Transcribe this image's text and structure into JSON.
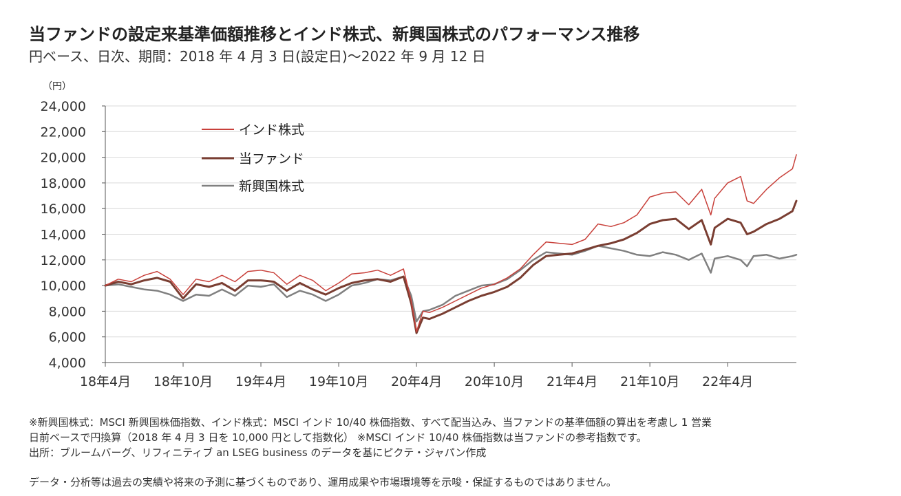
{
  "header": {
    "title": "当ファンドの設定来基準価額推移とインド株式、新興国株式のパフォーマンス推移",
    "subtitle": "円ベース、日次、期間：2018 年 4 月 3 日(設定日)～2022 年 9 月 12 日"
  },
  "chart_data": {
    "type": "line",
    "ylabel": "（円）",
    "ylim": [
      4000,
      24000
    ],
    "yticks": [
      "4,000",
      "6,000",
      "8,000",
      "10,000",
      "12,000",
      "14,000",
      "16,000",
      "18,000",
      "20,000",
      "22,000",
      "24,000"
    ],
    "ytick_values": [
      4000,
      6000,
      8000,
      10000,
      12000,
      14000,
      16000,
      18000,
      20000,
      22000,
      24000
    ],
    "xlim": [
      0,
      53.3
    ],
    "xticks": [
      "18年4月",
      "18年10月",
      "19年4月",
      "19年10月",
      "20年4月",
      "20年10月",
      "21年4月",
      "21年10月",
      "22年4月"
    ],
    "xtick_values": [
      0,
      6,
      12,
      18,
      24,
      30,
      36,
      42,
      48
    ],
    "grid": "horizontal",
    "legend_position": "top-left",
    "series": [
      {
        "name": "インド株式",
        "color": "#c8403a",
        "width": 1.5,
        "x": [
          0,
          1,
          2,
          3,
          4,
          5,
          6,
          7,
          8,
          9,
          10,
          11,
          12,
          13,
          14,
          15,
          16,
          17,
          18,
          19,
          20,
          21,
          22,
          23,
          23.6,
          24,
          24.5,
          25,
          26,
          27,
          28,
          29,
          30,
          31,
          32,
          33,
          34,
          35,
          36,
          37,
          38,
          39,
          40,
          41,
          42,
          43,
          44,
          45,
          46,
          46.7,
          47,
          48,
          49,
          49.5,
          50,
          51,
          52,
          53,
          53.3
        ],
        "y": [
          10000,
          10500,
          10300,
          10800,
          11100,
          10500,
          9300,
          10500,
          10300,
          10800,
          10300,
          11100,
          11200,
          11000,
          10100,
          10800,
          10400,
          9600,
          10200,
          10900,
          11000,
          11200,
          10800,
          11300,
          8800,
          6400,
          8000,
          7900,
          8300,
          8800,
          9300,
          9800,
          10100,
          10600,
          11300,
          12400,
          13400,
          13300,
          13200,
          13600,
          14800,
          14600,
          14900,
          15500,
          16900,
          17200,
          17300,
          16300,
          17500,
          15500,
          16800,
          18000,
          18500,
          16600,
          16400,
          17500,
          18400,
          19100,
          20200
        ]
      },
      {
        "name": "当ファンド",
        "color": "#7a3e32",
        "width": 3,
        "x": [
          0,
          1,
          2,
          3,
          4,
          5,
          6,
          7,
          8,
          9,
          10,
          11,
          12,
          13,
          14,
          15,
          16,
          17,
          18,
          19,
          20,
          21,
          22,
          23,
          23.6,
          24,
          24.5,
          25,
          26,
          27,
          28,
          29,
          30,
          31,
          32,
          33,
          34,
          35,
          36,
          37,
          38,
          39,
          40,
          41,
          42,
          43,
          44,
          45,
          46,
          46.7,
          47,
          48,
          49,
          49.5,
          50,
          51,
          52,
          53,
          53.3
        ],
        "y": [
          10000,
          10300,
          10100,
          10400,
          10600,
          10300,
          9000,
          10100,
          9900,
          10200,
          9600,
          10400,
          10400,
          10300,
          9600,
          10200,
          9700,
          9300,
          9800,
          10200,
          10400,
          10500,
          10300,
          10700,
          8600,
          6300,
          7500,
          7400,
          7800,
          8300,
          8800,
          9200,
          9500,
          9900,
          10600,
          11600,
          12300,
          12400,
          12500,
          12800,
          13100,
          13300,
          13600,
          14100,
          14800,
          15100,
          15200,
          14400,
          15100,
          13200,
          14500,
          15200,
          14900,
          14000,
          14200,
          14800,
          15200,
          15800,
          16600
        ]
      },
      {
        "name": "新興国株式",
        "color": "#808080",
        "width": 2.5,
        "x": [
          0,
          1,
          2,
          3,
          4,
          5,
          6,
          7,
          8,
          9,
          10,
          11,
          12,
          13,
          14,
          15,
          16,
          17,
          18,
          19,
          20,
          21,
          22,
          23,
          23.6,
          24,
          24.5,
          25,
          26,
          27,
          28,
          29,
          30,
          31,
          32,
          33,
          34,
          35,
          36,
          37,
          38,
          39,
          40,
          41,
          42,
          43,
          44,
          45,
          46,
          46.7,
          47,
          48,
          49,
          49.5,
          50,
          51,
          52,
          53,
          53.3
        ],
        "y": [
          10000,
          10100,
          9900,
          9700,
          9600,
          9300,
          8800,
          9300,
          9200,
          9700,
          9200,
          10000,
          9900,
          10100,
          9100,
          9600,
          9300,
          8800,
          9300,
          10000,
          10200,
          10500,
          10400,
          10700,
          9200,
          7200,
          8000,
          8100,
          8500,
          9200,
          9600,
          10000,
          10100,
          10500,
          11200,
          12000,
          12600,
          12500,
          12400,
          12700,
          13100,
          12900,
          12700,
          12400,
          12300,
          12600,
          12400,
          12000,
          12500,
          11000,
          12100,
          12300,
          12000,
          11500,
          12300,
          12400,
          12100,
          12300,
          12400
        ]
      }
    ]
  },
  "notes": {
    "line1": "※新興国株式：MSCI 新興国株価指数、インド株式：MSCI インド 10/40 株価指数、すべて配当込み、当ファンドの基準価額の算出を考慮し 1 営業",
    "line2": "日前ベースで円換算（2018 年 4 月 3 日を 10,000 円として指数化） ※MSCI インド 10/40 株価指数は当ファンドの参考指数です。",
    "line3": "出所：ブルームバーグ、リフィニティブ an LSEG business のデータを基にピクテ・ジャパン作成"
  },
  "disclaimer": "データ・分析等は過去の実績や将来の予測に基づくものであり、運用成果や市場環境等を示唆・保証するものではありません。"
}
